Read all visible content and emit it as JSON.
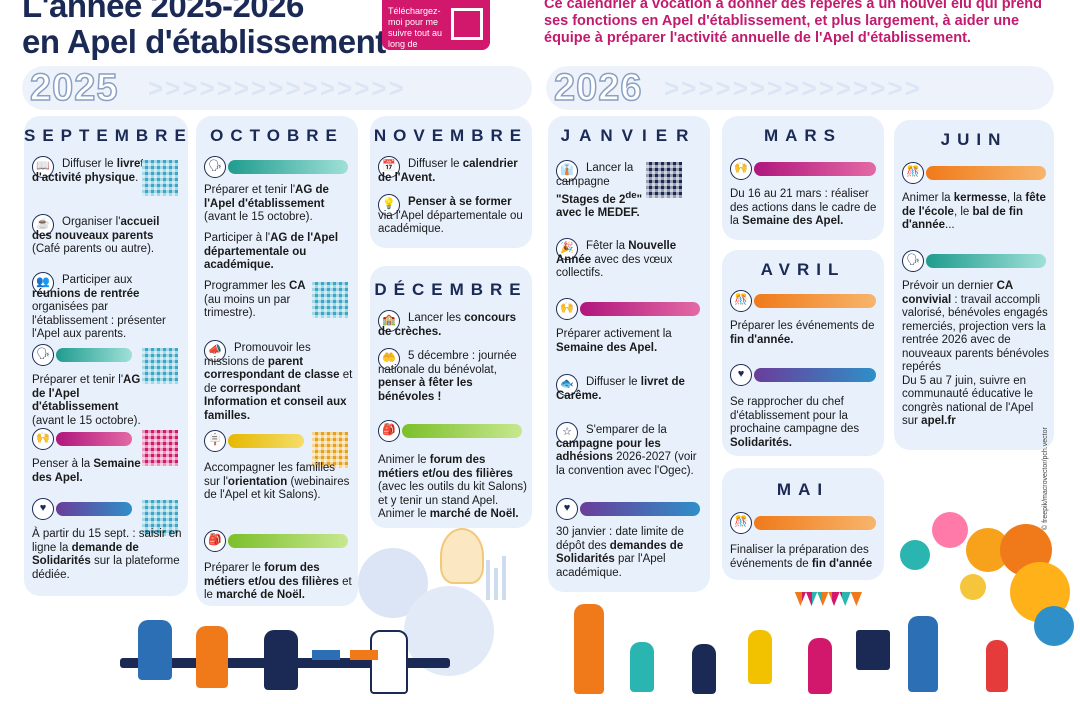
{
  "header": {
    "title_line1": "L'année 2025-2026",
    "title_line2": "en Apel d'établissement",
    "qr_text": "Téléchargez-moi pour me suivre tout au long de l'année",
    "intro": "Ce calendrier a vocation à donner des repères à un nouvel élu qui prend ses fonctions en Apel d'établissement, et plus largement, à aider une équipe à préparer l'activité annuelle de l'Apel d'établissement."
  },
  "years": {
    "y2025": "2025",
    "y2026": "2026",
    "chevrons": ">>>>>>>>>>>>>>>"
  },
  "months": {
    "septembre": "SEPTEMBRE",
    "octobre": "OCTOBRE",
    "novembre": "NOVEMBRE",
    "decembre": "DÉCEMBRE",
    "janvier": "JANVIER",
    "mars": "MARS",
    "avril": "AVRIL",
    "mai": "MAI",
    "juin": "JUIN"
  },
  "credit": "© freepik/macrovector/pch.vector",
  "colors": {
    "navy": "#1b2a55",
    "magenta": "#c21a6e",
    "card": "#e7f0fb"
  }
}
